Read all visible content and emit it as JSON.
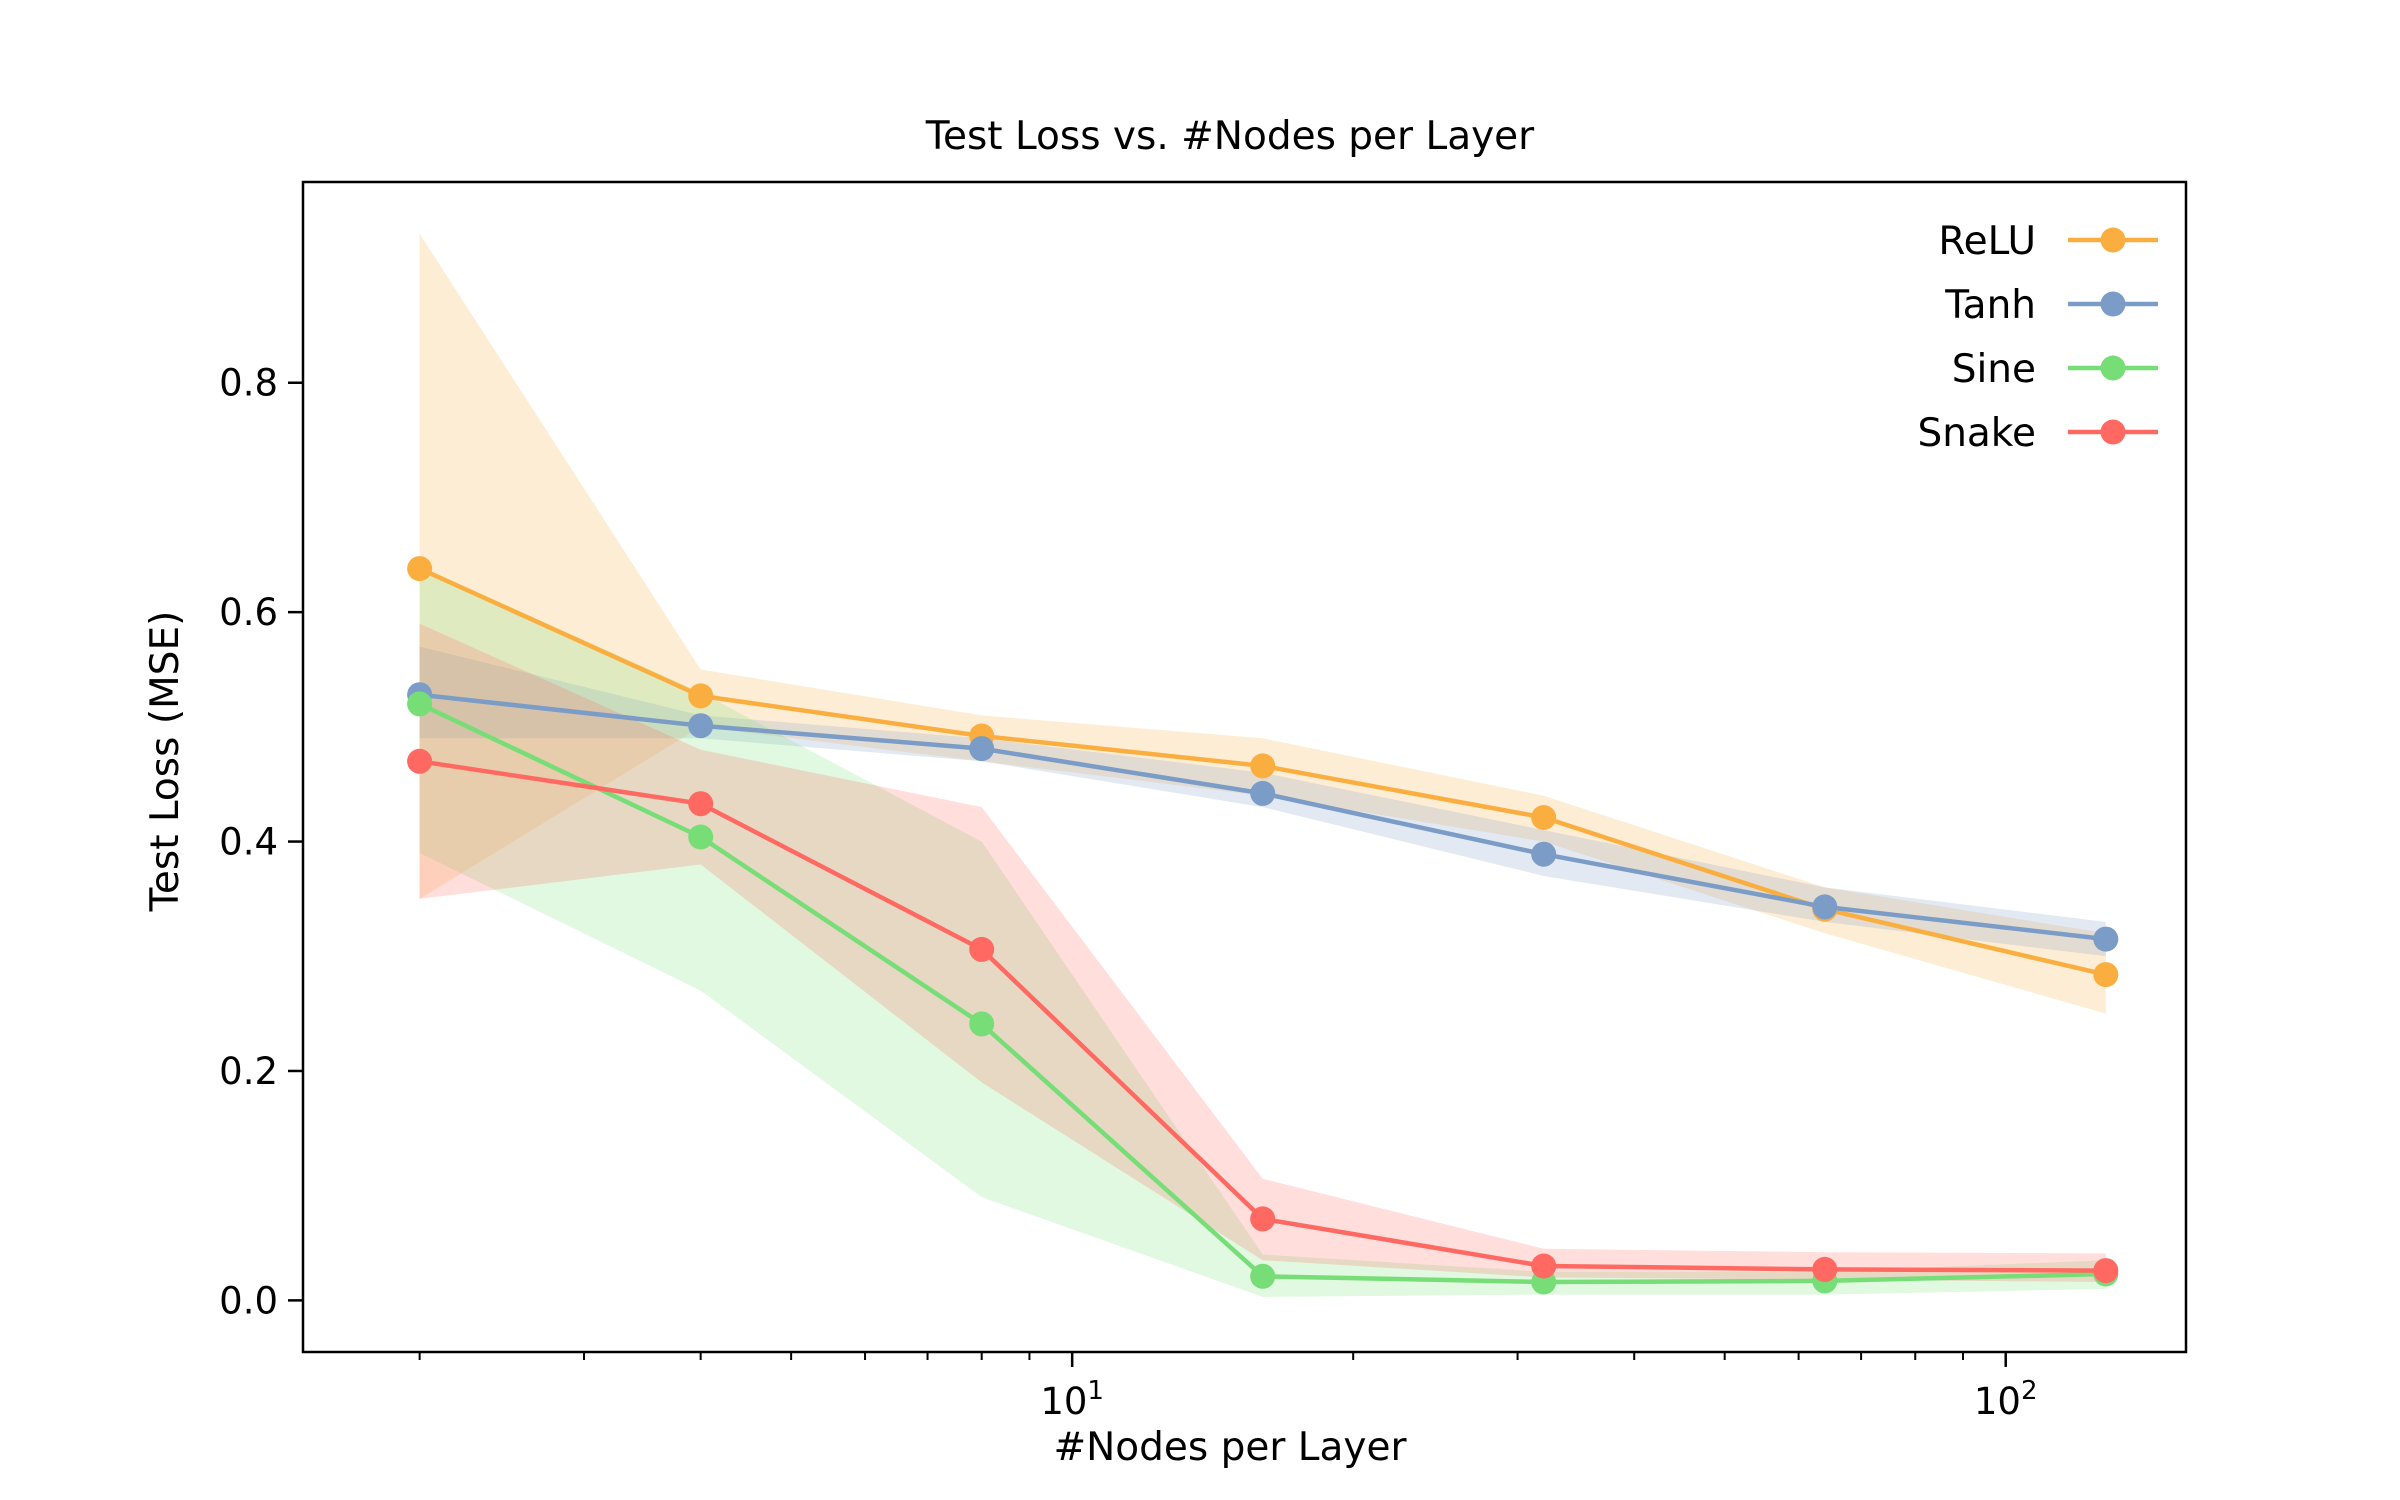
{
  "chart_data": {
    "type": "line",
    "title": "Test Loss vs. #Nodes per Layer",
    "xlabel": "#Nodes per Layer",
    "ylabel": "Test Loss (MSE)",
    "xscale": "log",
    "xlim": [
      1.5,
      156
    ],
    "ylim": [
      -0.045,
      0.975
    ],
    "x": [
      2,
      4,
      8,
      16,
      32,
      64,
      128
    ],
    "xticks": [
      {
        "value": 10,
        "base": "10",
        "exp": "1"
      },
      {
        "value": 100,
        "base": "10",
        "exp": "2"
      }
    ],
    "yticks": [
      {
        "value": 0.0,
        "label": "0.0"
      },
      {
        "value": 0.2,
        "label": "0.2"
      },
      {
        "value": 0.4,
        "label": "0.4"
      },
      {
        "value": 0.6,
        "label": "0.6"
      },
      {
        "value": 0.8,
        "label": "0.8"
      }
    ],
    "grid": false,
    "legend_position": "top-right",
    "series": [
      {
        "name": "ReLU",
        "color": "#FBAE40",
        "values": [
          0.638,
          0.527,
          0.492,
          0.466,
          0.421,
          0.341,
          0.284
        ],
        "lower": [
          0.35,
          0.5,
          0.47,
          0.44,
          0.4,
          0.32,
          0.25
        ],
        "upper": [
          0.93,
          0.55,
          0.51,
          0.49,
          0.44,
          0.36,
          0.32
        ]
      },
      {
        "name": "Tanh",
        "color": "#7A9CC6",
        "values": [
          0.528,
          0.501,
          0.481,
          0.442,
          0.389,
          0.343,
          0.315
        ],
        "lower": [
          0.49,
          0.49,
          0.47,
          0.43,
          0.37,
          0.33,
          0.3
        ],
        "upper": [
          0.57,
          0.51,
          0.49,
          0.46,
          0.41,
          0.36,
          0.33
        ]
      },
      {
        "name": "Sine",
        "color": "#77DD77",
        "values": [
          0.52,
          0.404,
          0.241,
          0.021,
          0.016,
          0.017,
          0.023
        ],
        "lower": [
          0.39,
          0.27,
          0.09,
          0.003,
          0.005,
          0.005,
          0.01
        ],
        "upper": [
          0.64,
          0.53,
          0.4,
          0.04,
          0.025,
          0.025,
          0.035
        ]
      },
      {
        "name": "Snake",
        "color": "#FF6961",
        "values": [
          0.47,
          0.433,
          0.306,
          0.071,
          0.03,
          0.027,
          0.026
        ],
        "lower": [
          0.35,
          0.38,
          0.19,
          0.035,
          0.02,
          0.018,
          0.016
        ],
        "upper": [
          0.59,
          0.48,
          0.43,
          0.106,
          0.045,
          0.042,
          0.041
        ]
      }
    ]
  }
}
